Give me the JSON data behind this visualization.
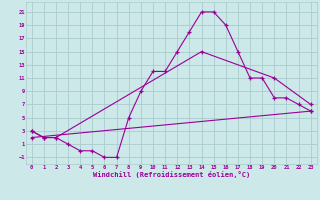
{
  "bg_color": "#cce8e8",
  "line_color": "#990099",
  "grid_color": "#aacccc",
  "xlabel": "Windchill (Refroidissement éolien,°C)",
  "xlabel_color": "#990099",
  "yticks": [
    -1,
    1,
    3,
    5,
    7,
    9,
    11,
    13,
    15,
    17,
    19,
    21
  ],
  "xticks": [
    0,
    1,
    2,
    3,
    4,
    5,
    6,
    7,
    8,
    9,
    10,
    11,
    12,
    13,
    14,
    15,
    16,
    17,
    18,
    19,
    20,
    21,
    22,
    23
  ],
  "ylim": [
    -2,
    22.5
  ],
  "xlim": [
    -0.5,
    23.5
  ],
  "line1_x": [
    0,
    1,
    2,
    3,
    4,
    5,
    6,
    7,
    8,
    9,
    10,
    11,
    12,
    13,
    14,
    15,
    16,
    17,
    18,
    19,
    20,
    21,
    22,
    23
  ],
  "line1_y": [
    3,
    2,
    2,
    1,
    0,
    0,
    -1,
    -1,
    5,
    9,
    12,
    12,
    15,
    18,
    21,
    21,
    19,
    15,
    11,
    11,
    8,
    8,
    7,
    6
  ],
  "line2_x": [
    0,
    1,
    2,
    14,
    20,
    23
  ],
  "line2_y": [
    3,
    2,
    2,
    15,
    11,
    7
  ],
  "line3_x": [
    0,
    23
  ],
  "line3_y": [
    2,
    6
  ]
}
